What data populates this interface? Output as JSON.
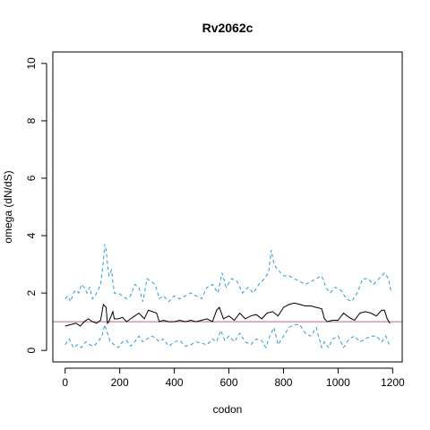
{
  "chart_data": {
    "type": "line",
    "title": "Rv2062c",
    "xlabel": "codon",
    "ylabel": "omega (dN/dS)",
    "xlim": [
      -45,
      1235
    ],
    "ylim": [
      -0.4,
      10.4
    ],
    "xticks": [
      0,
      200,
      400,
      600,
      800,
      1000,
      1200
    ],
    "yticks": [
      0,
      2,
      4,
      6,
      8,
      10
    ],
    "grid": false,
    "reference_line": {
      "y": 1,
      "color": "#c0608a"
    },
    "series": [
      {
        "style": "solid",
        "color": "#000000",
        "x": [
          0,
          20,
          40,
          55,
          70,
          85,
          100,
          115,
          130,
          140,
          150,
          155,
          160,
          175,
          180,
          195,
          210,
          225,
          240,
          255,
          270,
          290,
          305,
          320,
          335,
          345,
          360,
          380,
          400,
          420,
          440,
          460,
          480,
          500,
          520,
          540,
          555,
          565,
          580,
          600,
          620,
          640,
          660,
          680,
          700,
          720,
          740,
          760,
          780,
          800,
          820,
          840,
          860,
          880,
          900,
          920,
          940,
          950,
          960,
          980,
          1000,
          1020,
          1040,
          1060,
          1080,
          1100,
          1120,
          1140,
          1160,
          1170,
          1180,
          1190
        ],
        "y": [
          0.85,
          0.9,
          0.95,
          0.85,
          1.0,
          1.1,
          1.0,
          0.95,
          1.05,
          1.6,
          1.5,
          0.95,
          1.0,
          1.35,
          1.1,
          1.1,
          1.15,
          1.0,
          1.1,
          1.2,
          1.3,
          1.1,
          1.4,
          1.35,
          1.3,
          1.0,
          1.05,
          1.0,
          1.0,
          1.05,
          1.0,
          1.05,
          1.0,
          1.05,
          1.1,
          1.0,
          1.4,
          1.5,
          1.1,
          1.2,
          1.05,
          1.3,
          1.1,
          1.2,
          1.25,
          1.1,
          1.3,
          1.35,
          1.2,
          1.5,
          1.6,
          1.65,
          1.6,
          1.55,
          1.55,
          1.5,
          1.45,
          1.1,
          1.0,
          1.05,
          1.05,
          1.3,
          1.15,
          1.05,
          1.3,
          1.35,
          1.3,
          1.2,
          1.4,
          1.4,
          1.1,
          0.95
        ]
      },
      {
        "style": "dashed",
        "color": "#2e9bd6",
        "x": [
          0,
          10,
          20,
          30,
          40,
          50,
          60,
          70,
          80,
          90,
          100,
          110,
          120,
          130,
          140,
          145,
          150,
          160,
          170,
          180,
          195,
          210,
          225,
          240,
          255,
          270,
          285,
          300,
          315,
          330,
          345,
          360,
          380,
          400,
          420,
          440,
          460,
          480,
          500,
          520,
          540,
          560,
          575,
          590,
          610,
          630,
          650,
          670,
          690,
          710,
          730,
          745,
          755,
          765,
          780,
          800,
          820,
          840,
          860,
          880,
          900,
          920,
          940,
          955,
          970,
          990,
          1010,
          1030,
          1050,
          1070,
          1090,
          1110,
          1130,
          1150,
          1170,
          1185,
          1195
        ],
        "y": [
          1.8,
          1.9,
          1.7,
          2.0,
          2.1,
          2.0,
          2.3,
          2.2,
          2.0,
          2.2,
          1.8,
          1.9,
          2.1,
          2.3,
          3.1,
          3.7,
          3.5,
          2.6,
          2.8,
          2.0,
          2.0,
          1.9,
          1.8,
          1.9,
          2.3,
          2.2,
          1.7,
          2.5,
          2.4,
          2.3,
          1.8,
          1.9,
          1.7,
          1.9,
          1.8,
          1.9,
          2.0,
          1.9,
          1.8,
          2.2,
          2.3,
          2.0,
          2.7,
          2.2,
          2.5,
          2.4,
          2.0,
          2.2,
          2.0,
          2.3,
          2.5,
          2.7,
          3.5,
          3.0,
          2.8,
          2.6,
          2.6,
          2.5,
          2.4,
          2.3,
          2.4,
          2.5,
          2.6,
          2.2,
          2.0,
          2.2,
          2.1,
          1.8,
          1.7,
          2.0,
          2.5,
          2.5,
          2.3,
          2.5,
          2.7,
          2.5,
          2.0
        ]
      },
      {
        "style": "dashed",
        "color": "#2e9bd6",
        "x": [
          0,
          15,
          30,
          45,
          60,
          75,
          90,
          105,
          120,
          135,
          145,
          155,
          165,
          180,
          195,
          210,
          225,
          240,
          255,
          270,
          285,
          300,
          315,
          330,
          345,
          360,
          380,
          400,
          420,
          440,
          460,
          480,
          500,
          520,
          540,
          555,
          570,
          585,
          600,
          620,
          640,
          660,
          680,
          700,
          720,
          735,
          750,
          765,
          780,
          800,
          820,
          840,
          860,
          880,
          900,
          920,
          940,
          950,
          965,
          980,
          1000,
          1020,
          1040,
          1060,
          1080,
          1100,
          1120,
          1140,
          1160,
          1175,
          1190
        ],
        "y": [
          0.2,
          0.4,
          0.1,
          0.2,
          0.1,
          0.3,
          0.2,
          0.15,
          0.3,
          0.5,
          0.9,
          0.6,
          0.3,
          0.2,
          0.1,
          0.3,
          0.35,
          0.15,
          0.3,
          0.5,
          0.3,
          0.4,
          0.5,
          0.45,
          0.3,
          0.4,
          0.15,
          0.3,
          0.35,
          0.15,
          0.2,
          0.3,
          0.25,
          0.2,
          0.4,
          0.3,
          0.7,
          0.35,
          0.5,
          0.3,
          0.6,
          0.3,
          0.2,
          0.4,
          0.35,
          0.1,
          0.5,
          0.8,
          0.2,
          0.5,
          0.8,
          0.9,
          0.9,
          0.6,
          0.5,
          0.8,
          0.1,
          0.3,
          0.1,
          0.4,
          0.5,
          0.1,
          0.4,
          0.5,
          0.3,
          0.4,
          0.5,
          0.5,
          0.3,
          0.5,
          0.15
        ]
      }
    ]
  }
}
